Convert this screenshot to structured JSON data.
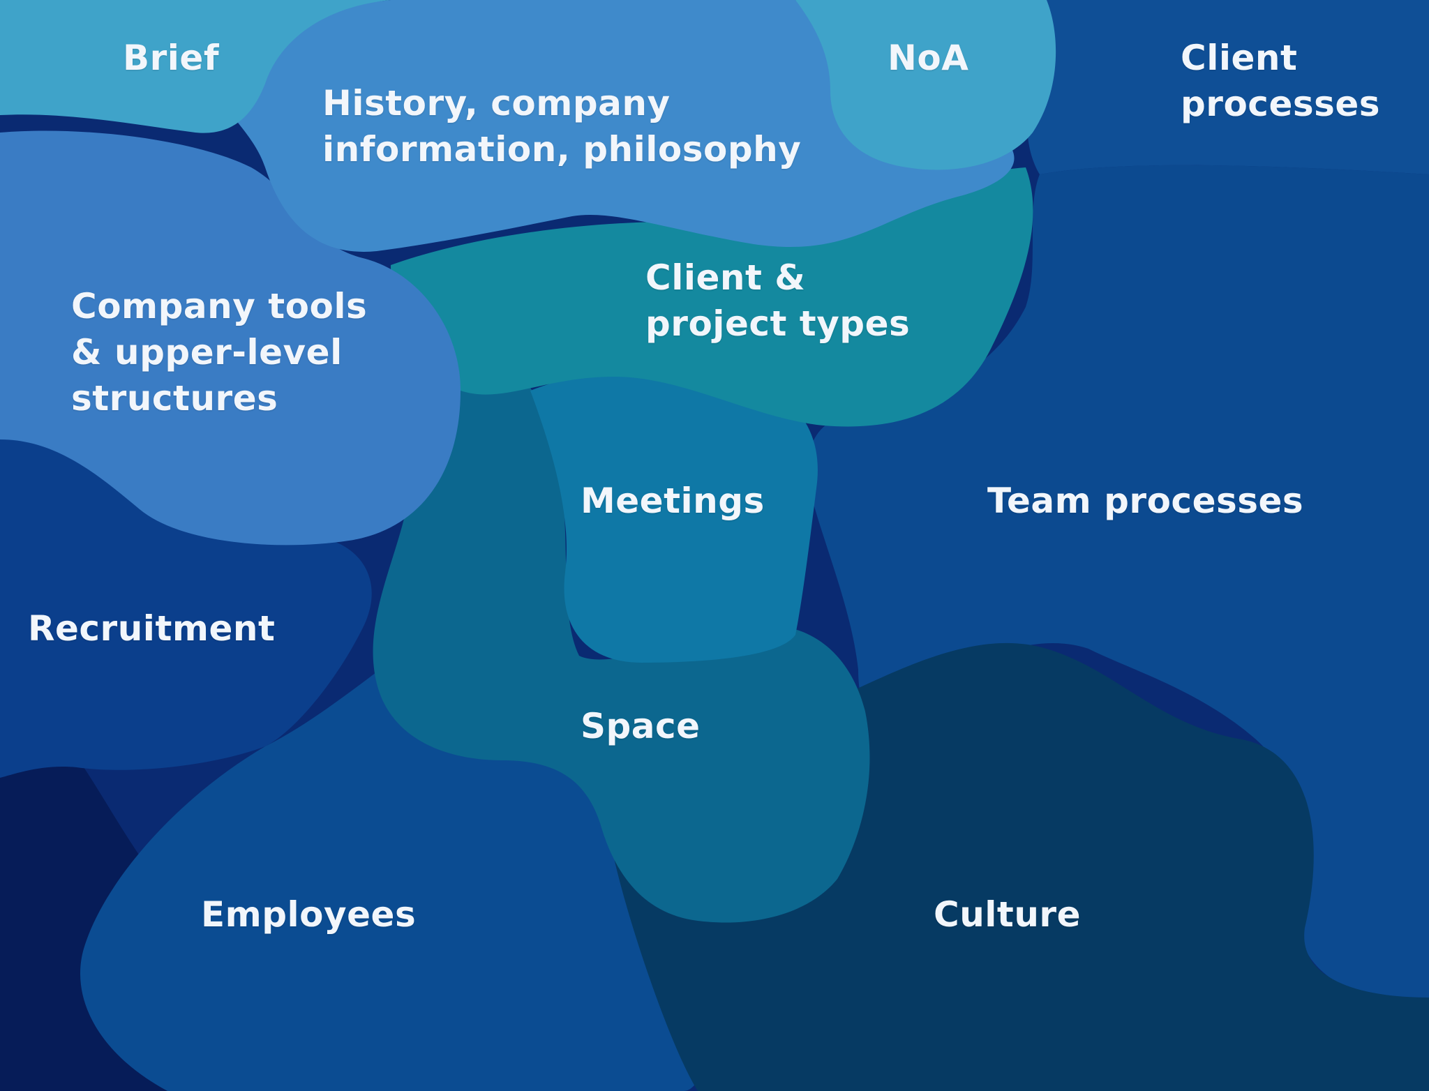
{
  "regions": {
    "brief": {
      "label": "Brief",
      "color": "#3fa3c9"
    },
    "history": {
      "label": "History, company\ninformation, philosophy",
      "color": "#3f8acb"
    },
    "noa": {
      "label": "NoA",
      "color": "#3fa3c9"
    },
    "client_processes": {
      "label": "Client\nprocesses",
      "color": "#0f4f96"
    },
    "company_tools": {
      "label": "Company tools\n& upper-level\nstructures",
      "color": "#3a7cc4"
    },
    "client_project_types": {
      "label": "Client &\nproject types",
      "color": "#14899f"
    },
    "meetings": {
      "label": "Meetings",
      "color": "#0f78a6"
    },
    "team_processes": {
      "label": "Team processes",
      "color": "#0c4a90"
    },
    "recruitment": {
      "label": "Recruitment",
      "color": "#0b3f8c"
    },
    "space": {
      "label": "Space",
      "color": "#0c678f"
    },
    "employees": {
      "label": "Employees",
      "color": "#0b4c92"
    },
    "culture": {
      "label": "Culture",
      "color": "#063a63"
    }
  },
  "background_color": "#0a2a72",
  "deep_color": "#061c58"
}
